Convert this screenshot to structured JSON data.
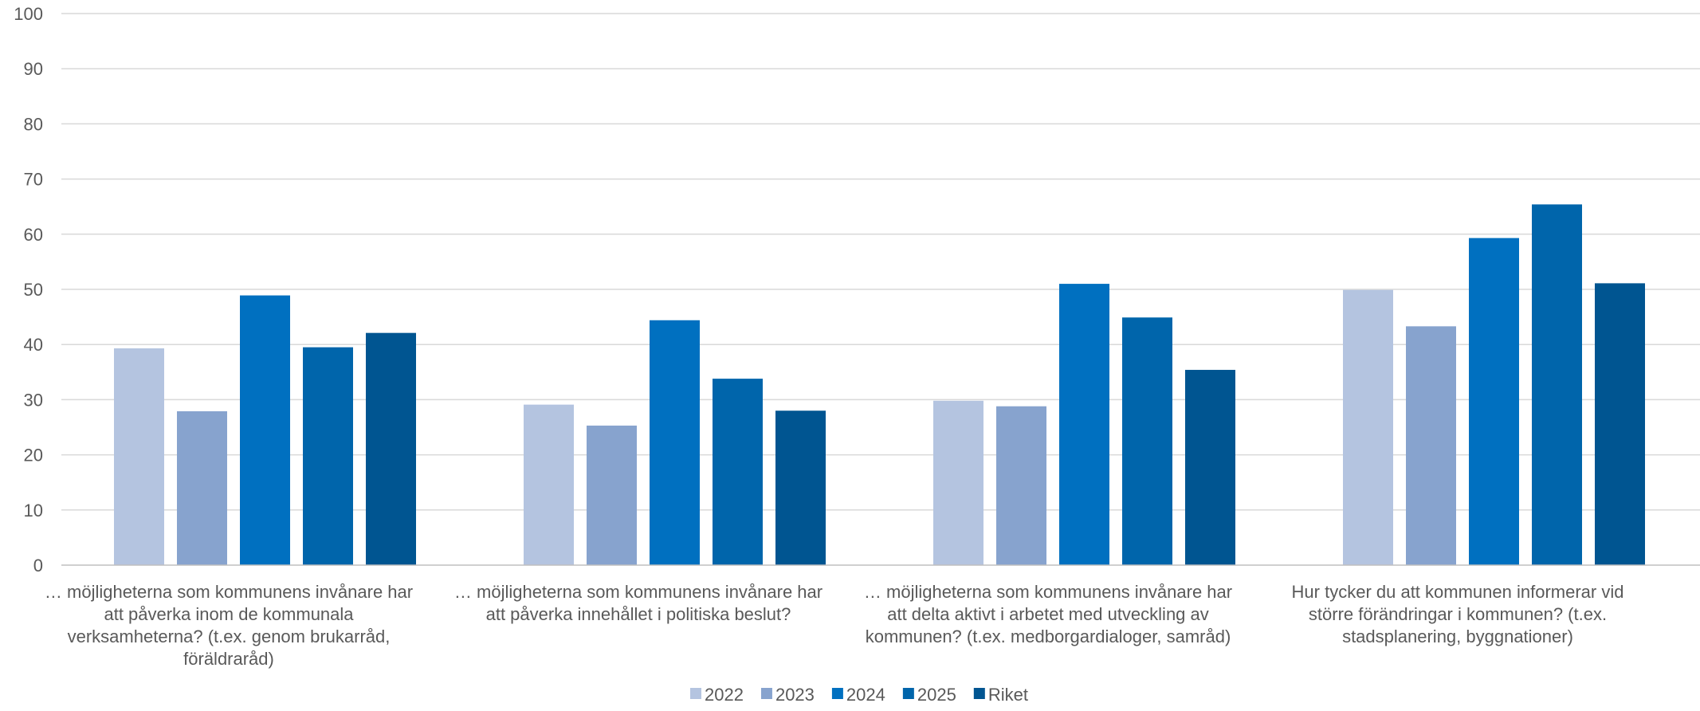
{
  "chart_data": {
    "type": "bar",
    "ylim": [
      0,
      100
    ],
    "yticks": [
      0,
      10,
      20,
      30,
      40,
      50,
      60,
      70,
      80,
      90,
      100
    ],
    "grid": true,
    "legend_position": "bottom",
    "categories": [
      [
        "… möjligheterna som kommunens invånare har",
        "att påverka inom de kommunala",
        "verksamheterna? (t.ex. genom brukarråd,",
        "föräldraråd)"
      ],
      [
        "… möjligheterna som kommunens invånare har",
        "att påverka innehållet i politiska beslut?"
      ],
      [
        "… möjligheterna som kommunens invånare har",
        "att delta aktivt i arbetet med utveckling av",
        "kommunen? (t.ex. medborgardialoger, samråd)"
      ],
      [
        "Hur tycker du att kommunen informerar vid",
        "större förändringar i kommunen? (t.ex.",
        "stadsplanering, byggnationer)"
      ]
    ],
    "series": [
      {
        "name": "2022",
        "color": "#b4c4e0",
        "values": [
          39.3,
          29.1,
          29.8,
          49.9
        ]
      },
      {
        "name": "2023",
        "color": "#87a3ce",
        "values": [
          27.9,
          25.3,
          28.8,
          43.3
        ]
      },
      {
        "name": "2024",
        "color": "#0070c0",
        "values": [
          48.9,
          44.4,
          51.0,
          59.3
        ]
      },
      {
        "name": "2025",
        "color": "#0065ab",
        "values": [
          39.5,
          33.8,
          44.9,
          65.4
        ]
      },
      {
        "name": "Riket",
        "color": "#005591",
        "values": [
          42.1,
          28.0,
          35.4,
          51.1
        ]
      }
    ]
  }
}
